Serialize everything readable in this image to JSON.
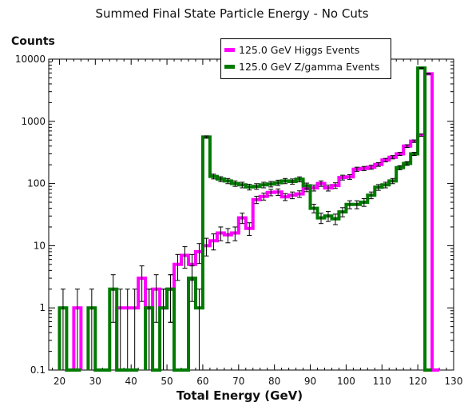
{
  "chart_data": {
    "type": "histogram",
    "title": "Summed Final State Particle Energy - No Cuts",
    "xlabel": "Total Energy (GeV)",
    "ylabel": "Counts",
    "x_scale": "linear",
    "y_scale": "log",
    "xlim": [
      17,
      130
    ],
    "ylim": [
      0.1,
      10000
    ],
    "x_ticks": [
      "20",
      "30",
      "40",
      "50",
      "60",
      "70",
      "80",
      "90",
      "100",
      "110",
      "120",
      "130"
    ],
    "y_ticks": [
      "0.1",
      "1",
      "10",
      "100",
      "1000",
      "10000"
    ],
    "bin_width": 2,
    "legend_position": "top-right",
    "series": [
      {
        "name": "125.0 GeV Higgs Events",
        "color": "#ff00ff",
        "bins": [
          [
            24,
            1
          ],
          [
            36,
            1
          ],
          [
            38,
            1
          ],
          [
            40,
            1
          ],
          [
            42,
            3
          ],
          [
            44,
            1
          ],
          [
            46,
            2
          ],
          [
            48,
            1
          ],
          [
            50,
            2
          ],
          [
            52,
            5
          ],
          [
            54,
            7
          ],
          [
            56,
            5
          ],
          [
            58,
            8
          ],
          [
            60,
            10
          ],
          [
            62,
            12
          ],
          [
            64,
            16
          ],
          [
            66,
            15
          ],
          [
            68,
            16
          ],
          [
            70,
            28
          ],
          [
            72,
            19
          ],
          [
            74,
            55
          ],
          [
            76,
            62
          ],
          [
            78,
            72
          ],
          [
            80,
            73
          ],
          [
            82,
            61
          ],
          [
            84,
            65
          ],
          [
            86,
            68
          ],
          [
            88,
            83
          ],
          [
            90,
            85
          ],
          [
            92,
            100
          ],
          [
            94,
            85
          ],
          [
            96,
            93
          ],
          [
            98,
            125
          ],
          [
            100,
            128
          ],
          [
            102,
            170
          ],
          [
            104,
            175
          ],
          [
            106,
            183
          ],
          [
            108,
            203
          ],
          [
            110,
            238
          ],
          [
            112,
            265
          ],
          [
            114,
            300
          ],
          [
            116,
            400
          ],
          [
            118,
            480
          ],
          [
            120,
            600
          ],
          [
            122,
            5800
          ],
          [
            124,
            0.1
          ]
        ]
      },
      {
        "name": "125.0 GeV Z/gamma Events",
        "color": "#007a00",
        "bins": [
          [
            20,
            1
          ],
          [
            22,
            0.1
          ],
          [
            24,
            0.1
          ],
          [
            28,
            1
          ],
          [
            30,
            0.1
          ],
          [
            32,
            0.1
          ],
          [
            34,
            2
          ],
          [
            36,
            0.1
          ],
          [
            38,
            0.1
          ],
          [
            40,
            0.1
          ],
          [
            44,
            1
          ],
          [
            46,
            0.1
          ],
          [
            48,
            1
          ],
          [
            50,
            2
          ],
          [
            52,
            0.1
          ],
          [
            54,
            0.1
          ],
          [
            56,
            3
          ],
          [
            58,
            1
          ],
          [
            60,
            560
          ],
          [
            62,
            130
          ],
          [
            64,
            118
          ],
          [
            66,
            110
          ],
          [
            68,
            100
          ],
          [
            70,
            95
          ],
          [
            72,
            88
          ],
          [
            74,
            90
          ],
          [
            76,
            95
          ],
          [
            78,
            98
          ],
          [
            80,
            103
          ],
          [
            82,
            110
          ],
          [
            84,
            108
          ],
          [
            86,
            117
          ],
          [
            88,
            92
          ],
          [
            90,
            40
          ],
          [
            92,
            28
          ],
          [
            94,
            30
          ],
          [
            96,
            27
          ],
          [
            98,
            35
          ],
          [
            100,
            46
          ],
          [
            102,
            46
          ],
          [
            104,
            50
          ],
          [
            106,
            65
          ],
          [
            108,
            87
          ],
          [
            110,
            95
          ],
          [
            112,
            110
          ],
          [
            114,
            180
          ],
          [
            116,
            210
          ],
          [
            118,
            300
          ],
          [
            120,
            7200
          ],
          [
            122,
            0.1
          ]
        ]
      }
    ]
  }
}
